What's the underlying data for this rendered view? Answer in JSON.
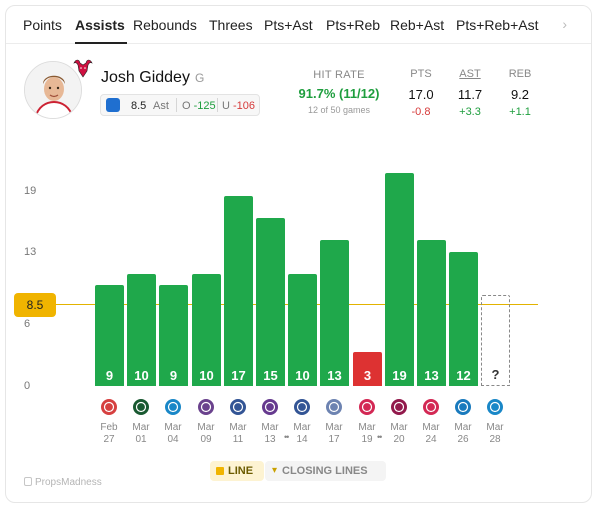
{
  "tabs": [
    {
      "label": "Points",
      "active": false
    },
    {
      "label": "Assists",
      "active": true
    },
    {
      "label": "Rebounds",
      "active": false
    },
    {
      "label": "Threes",
      "active": false
    },
    {
      "label": "Pts+Ast",
      "active": false
    },
    {
      "label": "Pts+Reb",
      "active": false
    },
    {
      "label": "Reb+Ast",
      "active": false
    },
    {
      "label": "Pts+Reb+Ast",
      "active": false
    }
  ],
  "tab_arrow": "›",
  "player": {
    "name": "Josh Giddey",
    "position": "G",
    "line": "8.5",
    "stat": "Ast",
    "over": {
      "label": "O",
      "odds": "-125"
    },
    "under": {
      "label": "U",
      "odds": "-106"
    }
  },
  "hit_rate": {
    "label": "HIT RATE",
    "value": "91.7% (11/12)",
    "games": "12 of 50 games"
  },
  "averages": [
    {
      "label": "PTS",
      "value": "17.0",
      "diff": "-0.8",
      "trend": "neg",
      "underlined": false
    },
    {
      "label": "AST",
      "value": "11.7",
      "diff": "+3.3",
      "trend": "pos",
      "underlined": true
    },
    {
      "label": "REB",
      "value": "9.2",
      "diff": "+1.1",
      "trend": "pos",
      "underlined": false
    }
  ],
  "colors": {
    "green": "#1fa84b",
    "red": "#dd3232",
    "line": "#f0b400"
  },
  "chart_data": {
    "type": "bar",
    "y_ticks": [
      "19",
      "13",
      "6",
      "0"
    ],
    "ylim": [
      0,
      19
    ],
    "line_value": 8.5,
    "line_label": "8.5",
    "games": [
      {
        "month": "Feb",
        "day": "27",
        "value": 9,
        "label": "9",
        "result": "over",
        "team": "POR"
      },
      {
        "month": "Mar",
        "day": "01",
        "value": 10,
        "label": "10",
        "result": "over",
        "team": "MIL"
      },
      {
        "month": "Mar",
        "day": "04",
        "value": 9,
        "label": "9",
        "result": "over",
        "team": "OKC"
      },
      {
        "month": "Mar",
        "day": "09",
        "value": 10,
        "label": "10",
        "result": "over",
        "team": "SAC"
      },
      {
        "month": "Mar",
        "day": "11",
        "value": 17,
        "label": "17",
        "result": "over",
        "team": "GSW"
      },
      {
        "month": "Mar",
        "day": "13",
        "value": 15,
        "label": "15",
        "result": "over",
        "team": "LAL"
      },
      {
        "month": "Mar",
        "day": "14",
        "value": 10,
        "label": "10",
        "result": "over",
        "team": "LAC"
      },
      {
        "month": "Mar",
        "day": "17",
        "value": 13,
        "label": "13",
        "result": "over",
        "team": "MEM"
      },
      {
        "month": "Mar",
        "day": "19",
        "value": 3,
        "label": "3",
        "result": "under",
        "team": "TOR"
      },
      {
        "month": "Mar",
        "day": "20",
        "value": 19,
        "label": "19",
        "result": "over",
        "team": "CLE"
      },
      {
        "month": "Mar",
        "day": "24",
        "value": 13,
        "label": "13",
        "result": "over",
        "team": "HOU"
      },
      {
        "month": "Mar",
        "day": "26",
        "value": 12,
        "label": "12",
        "result": "over",
        "team": "PHI"
      },
      {
        "month": "Mar",
        "day": "28",
        "value": null,
        "label": "?",
        "result": "upcoming",
        "team": "OKC"
      }
    ],
    "date_gap_markers": [
      "••",
      "••"
    ]
  },
  "legend": {
    "line": "LINE",
    "closing": "CLOSING LINES"
  },
  "brand": "PropsMadness"
}
